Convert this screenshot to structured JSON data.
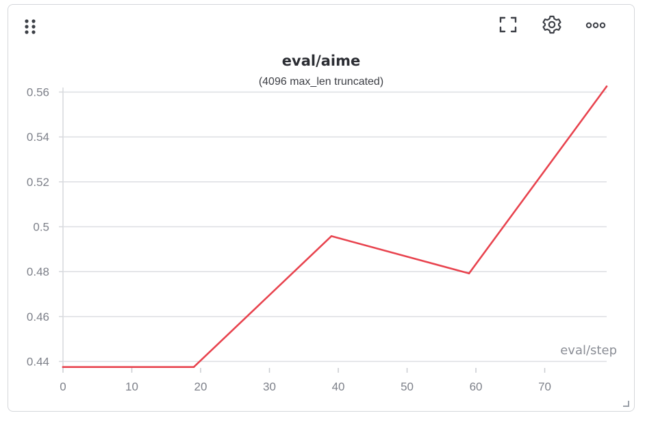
{
  "toolbar": {
    "drag_icon": "drag-dots-icon",
    "fullscreen_icon": "fullscreen-icon",
    "settings_icon": "gear-icon",
    "more_icon": "more-horizontal-icon"
  },
  "chart_data": {
    "type": "line",
    "title": "eval/aime",
    "subtitle": "(4096 max_len truncated)",
    "xlabel": "eval/step",
    "ylabel": "",
    "xlim": [
      0,
      79
    ],
    "ylim": [
      0.4365,
      0.562
    ],
    "x_ticks": [
      0,
      10,
      20,
      30,
      40,
      50,
      60,
      70
    ],
    "y_ticks": [
      0.44,
      0.46,
      0.48,
      0.5,
      0.52,
      0.54,
      0.56
    ],
    "y_tick_labels": [
      "0.44",
      "0.46",
      "0.48",
      "0.5",
      "0.52",
      "0.54",
      "0.56"
    ],
    "grid": true,
    "series": [
      {
        "color": "#e8434e",
        "x": [
          0,
          19,
          39,
          59,
          79
        ],
        "y": [
          0.4375,
          0.4375,
          0.4958,
          0.4792,
          0.5625
        ]
      }
    ]
  }
}
